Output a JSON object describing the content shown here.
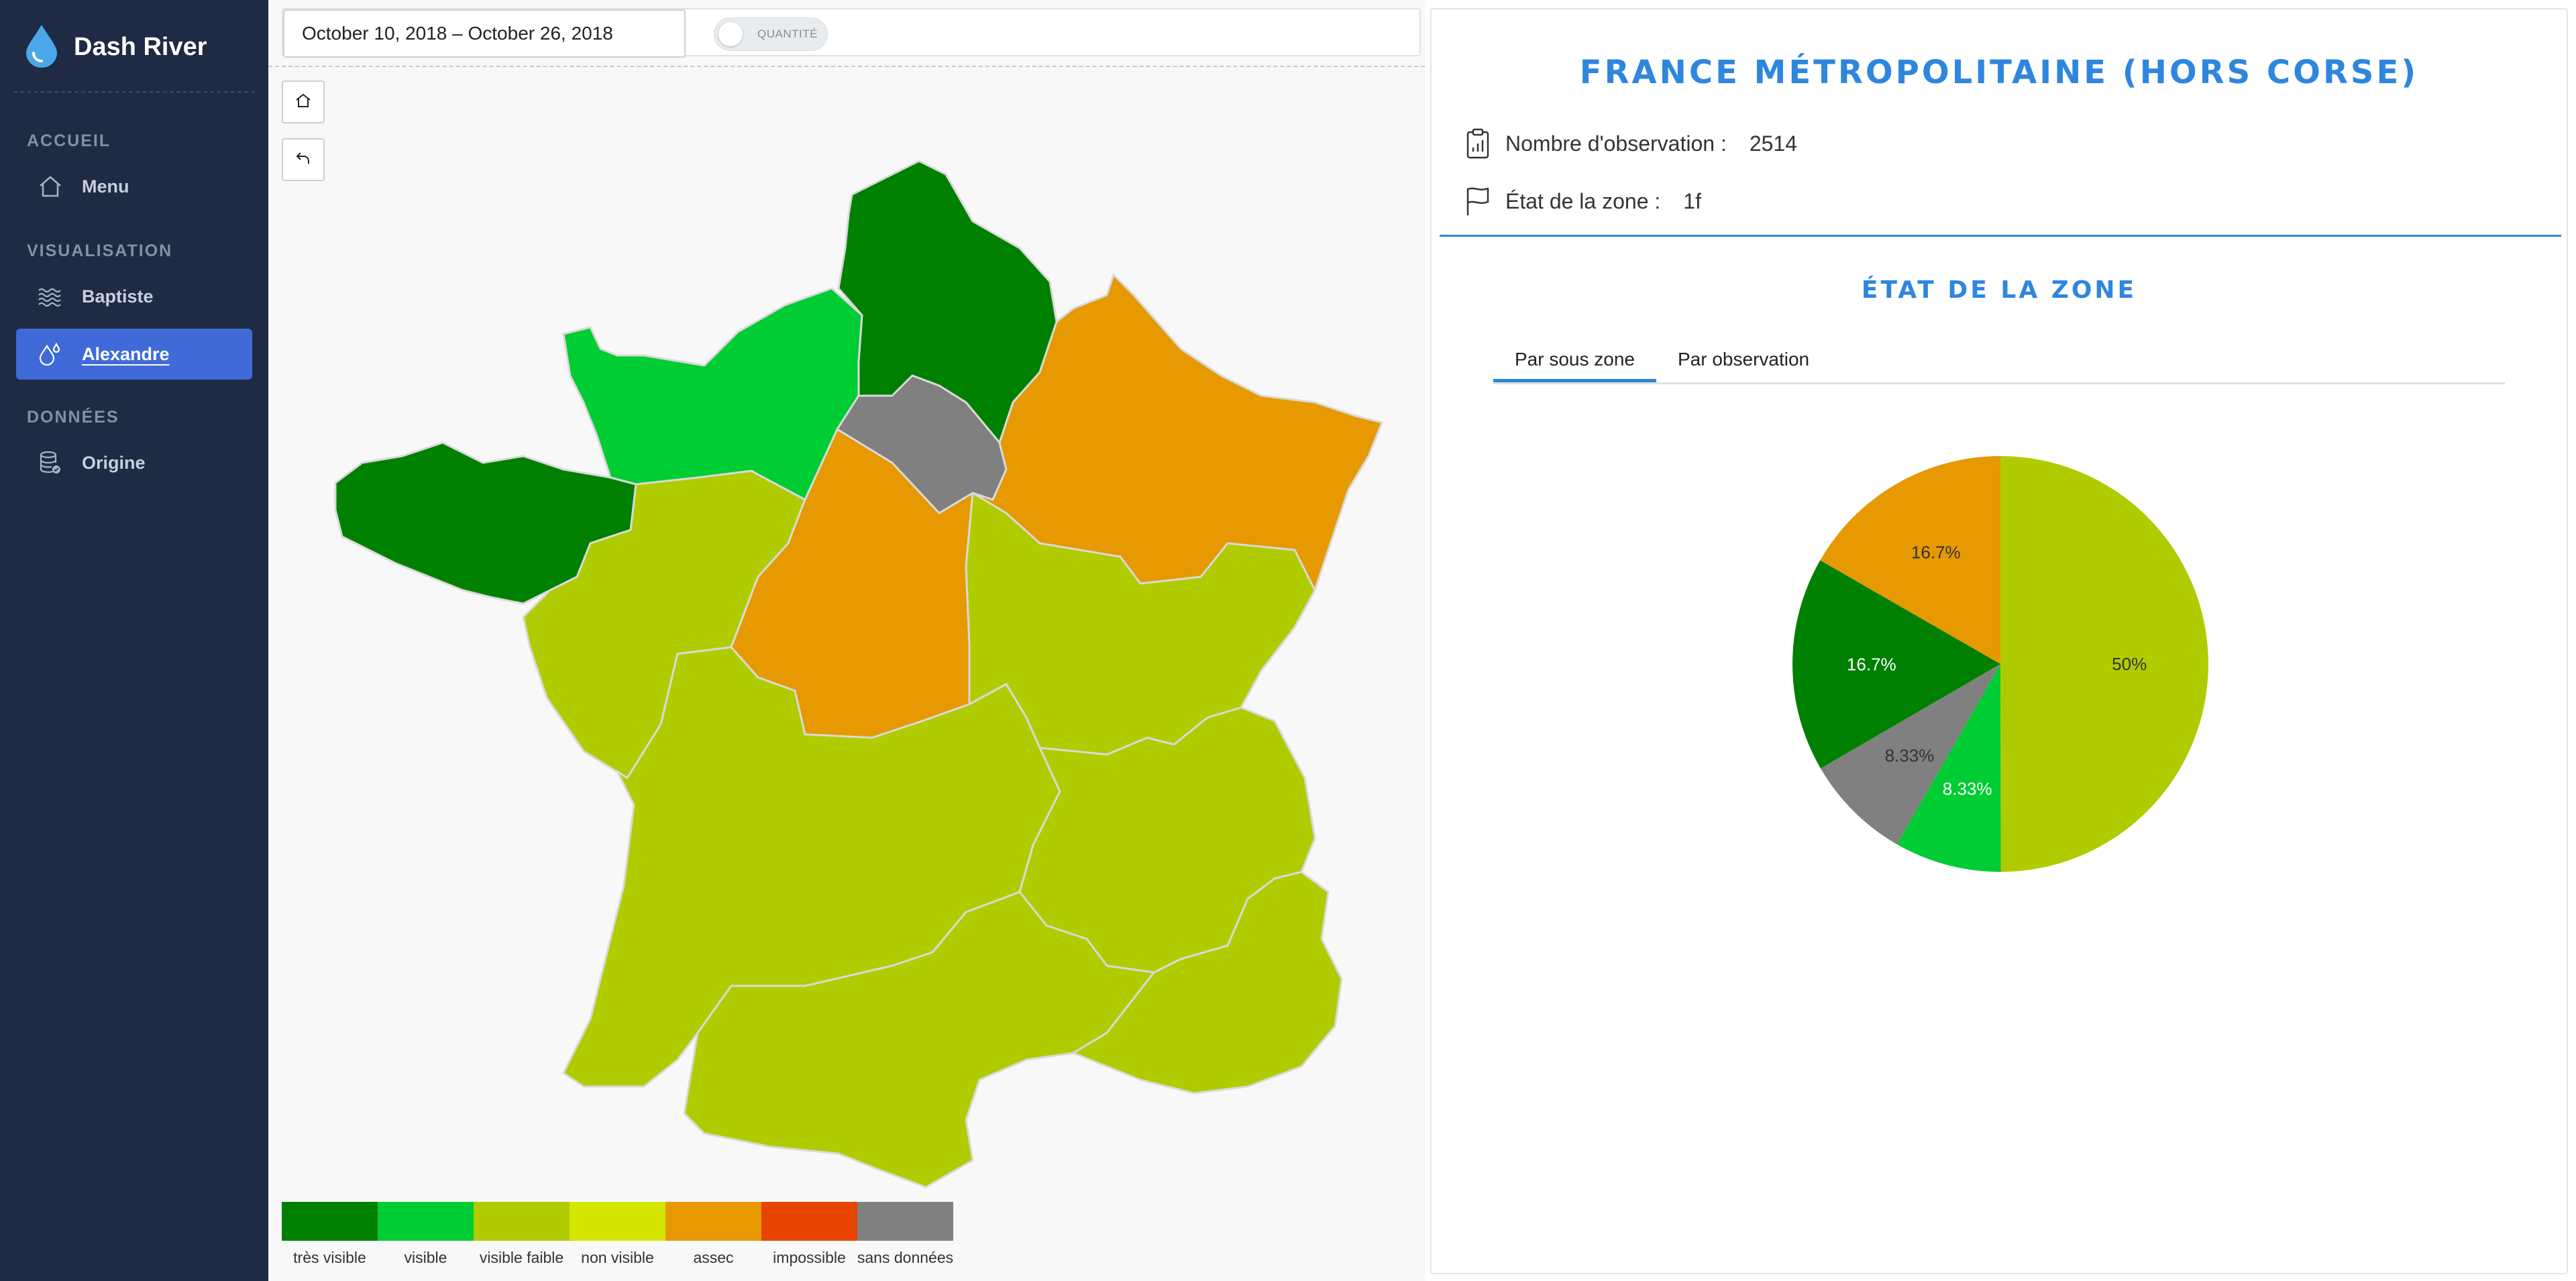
{
  "app": {
    "title": "Dash River"
  },
  "sidebar": {
    "sections": [
      {
        "label": "ACCUEIL",
        "items": [
          {
            "label": "Menu",
            "icon": "home-icon",
            "active": false
          }
        ]
      },
      {
        "label": "VISUALISATION",
        "items": [
          {
            "label": "Baptiste",
            "icon": "waves-icon",
            "active": false
          },
          {
            "label": "Alexandre",
            "icon": "droplet-icon",
            "active": true
          }
        ]
      },
      {
        "label": "DONNÉES",
        "items": [
          {
            "label": "Origine",
            "icon": "database-icon",
            "active": false
          }
        ]
      }
    ]
  },
  "toolbar": {
    "date_range": "October 10, 2018 – October 26, 2018",
    "toggle_label": "QUANTITÉ"
  },
  "map": {
    "regions": [
      {
        "id": "hauts-de-france",
        "status": "très visible"
      },
      {
        "id": "normandie",
        "status": "visible"
      },
      {
        "id": "bretagne",
        "status": "très visible"
      },
      {
        "id": "ile-de-france",
        "status": "sans données"
      },
      {
        "id": "grand-est",
        "status": "assec"
      },
      {
        "id": "centre-val-de-loire",
        "status": "assec"
      },
      {
        "id": "pays-de-la-loire",
        "status": "visible faible"
      },
      {
        "id": "bourgogne-franche-comte",
        "status": "visible faible"
      },
      {
        "id": "nouvelle-aquitaine",
        "status": "visible faible"
      },
      {
        "id": "auvergne-rhone-alpes",
        "status": "visible faible"
      },
      {
        "id": "occitanie",
        "status": "visible faible"
      },
      {
        "id": "provence-alpes-cote-dazur",
        "status": "visible faible"
      }
    ]
  },
  "legend": [
    {
      "label": "très visible",
      "color": "#008000"
    },
    {
      "label": "visible",
      "color": "#00cc33"
    },
    {
      "label": "visible faible",
      "color": "#b0cc00"
    },
    {
      "label": "non visible",
      "color": "#d4e600"
    },
    {
      "label": "assec",
      "color": "#e69900"
    },
    {
      "label": "impossible",
      "color": "#e64400"
    },
    {
      "label": "sans données",
      "color": "#808080"
    }
  ],
  "zone": {
    "title": "FRANCE MÉTROPOLITAINE (HORS CORSE)",
    "observation_label": "Nombre d'observation :",
    "observation_value": "2514",
    "state_label": "État de la zone :",
    "state_value": "1f",
    "section_title": "ÉTAT DE LA ZONE",
    "tabs": [
      {
        "label": "Par sous zone",
        "active": true
      },
      {
        "label": "Par observation",
        "active": false
      }
    ]
  },
  "chart_data": {
    "type": "pie",
    "title": "",
    "slices": [
      {
        "name": "visible faible",
        "value": 50,
        "label": "50%",
        "color": "#b0cc00"
      },
      {
        "name": "visible",
        "value": 8.33,
        "label": "8.33%",
        "color": "#00cc33"
      },
      {
        "name": "sans données",
        "value": 8.33,
        "label": "8.33%",
        "color": "#808080"
      },
      {
        "name": "très visible",
        "value": 16.7,
        "label": "16.7%",
        "color": "#008000"
      },
      {
        "name": "assec",
        "value": 16.7,
        "label": "16.7%",
        "color": "#e69900"
      }
    ]
  }
}
